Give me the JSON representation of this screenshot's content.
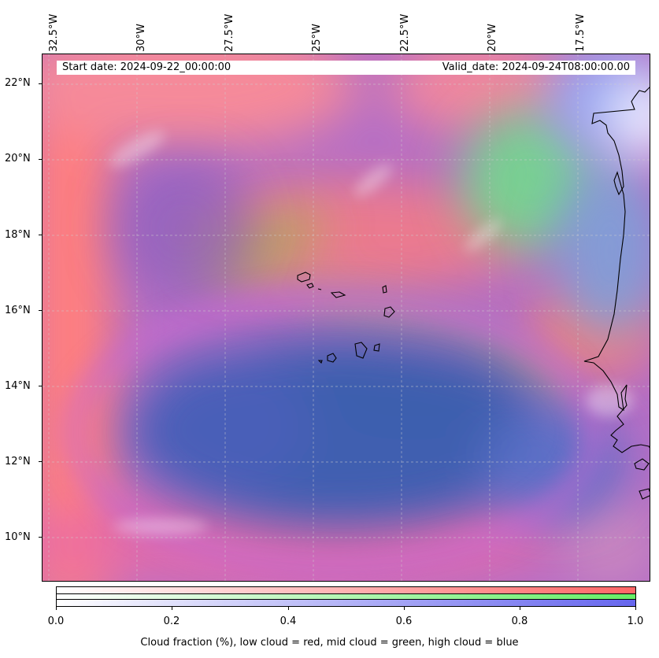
{
  "header": {
    "start_date": "Start date: 2024-09-22_00:00:00",
    "valid_date": "Valid_date: 2024-09-24T08:00:00.00"
  },
  "longitude_labels": [
    "32.5°W",
    "30°W",
    "27.5°W",
    "25°W",
    "22.5°W",
    "20°W",
    "17.5°W"
  ],
  "latitude_labels": [
    "22°N",
    "20°N",
    "18°N",
    "16°N",
    "14°N",
    "12°N",
    "10°N"
  ],
  "colorbar": {
    "ticks": [
      "0.0",
      "0.2",
      "0.4",
      "0.6",
      "0.8",
      "1.0"
    ],
    "caption": "Cloud fraction (%), low cloud = red, mid cloud = green, high cloud = blue",
    "colors": {
      "low": "#ff6666",
      "mid": "#66ee66",
      "high": "#6666ee"
    }
  }
}
